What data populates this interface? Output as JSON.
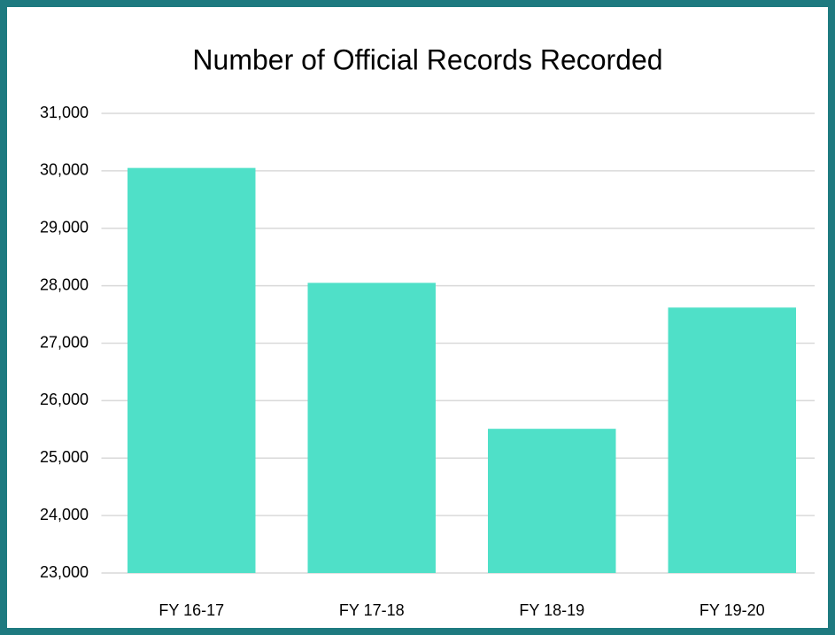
{
  "chart_data": {
    "type": "bar",
    "title": "Number of Official Records Recorded",
    "categories": [
      "FY 16-17",
      "FY 17-18",
      "FY 18-19",
      "FY 19-20"
    ],
    "values": [
      30050,
      28050,
      25510,
      27620
    ],
    "color": "#4fe0c8",
    "ylim": [
      23000,
      31000
    ],
    "yticks": [
      {
        "value": 23000,
        "label": "23,000"
      },
      {
        "value": 24000,
        "label": "24,000"
      },
      {
        "value": 25000,
        "label": "25,000"
      },
      {
        "value": 26000,
        "label": "26,000"
      },
      {
        "value": 27000,
        "label": "27,000"
      },
      {
        "value": 28000,
        "label": "28,000"
      },
      {
        "value": 29000,
        "label": "29,000"
      },
      {
        "value": 30000,
        "label": "30,000"
      },
      {
        "value": 31000,
        "label": "31,000"
      }
    ],
    "grid": true
  }
}
